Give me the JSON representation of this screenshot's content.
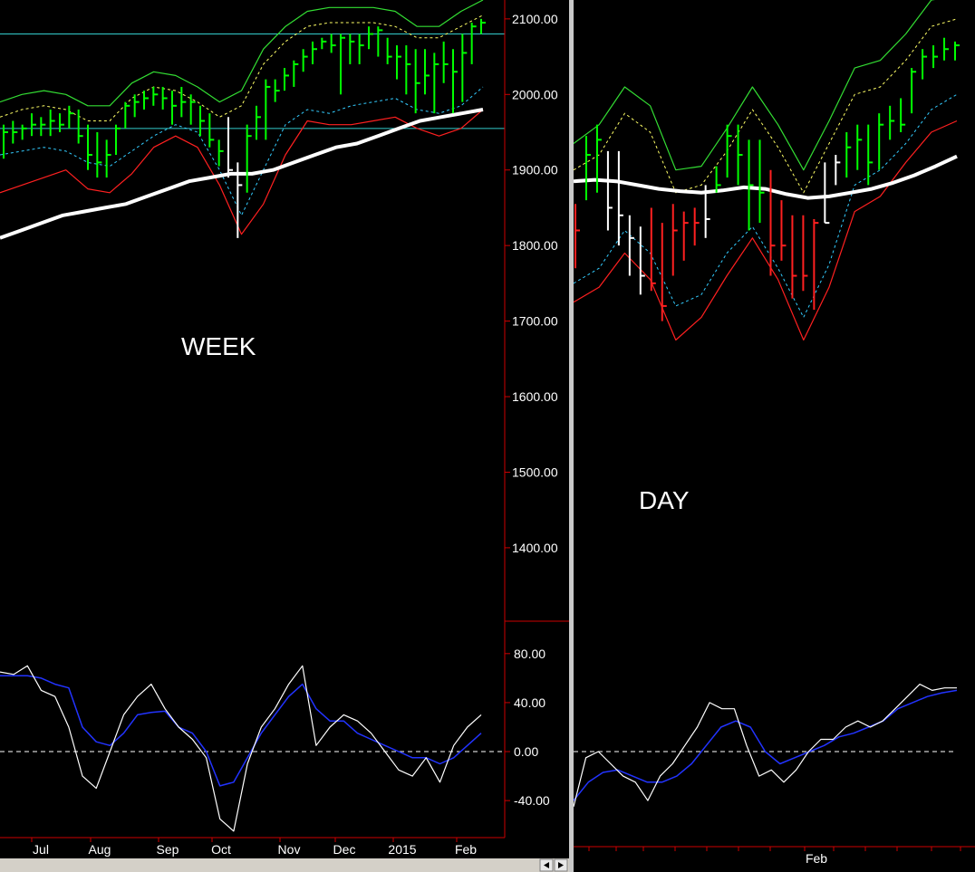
{
  "colors": {
    "background": "#000000",
    "up_bar": "#00ff00",
    "down_bar": "#ff2020",
    "neutral_bar": "#ffffff",
    "band_outer_upper": "#33dd33",
    "band_inner_upper": "#ffff66",
    "band_inner_lower": "#33ccff",
    "band_outer_lower": "#ff2020",
    "moving_average": "#ffffff",
    "support_lines": "#33cccc",
    "oscillator_fast": "#ffffff",
    "oscillator_slow": "#2233ff",
    "axis": "#cc0000",
    "divider": "#c8c8c8"
  },
  "panels": {
    "week_label": "WEEK",
    "day_label": "DAY"
  },
  "chart_data": [
    {
      "type": "ohlc",
      "panel": "week-price",
      "y_axis_ticks": [
        "2100.00",
        "2000.00",
        "1900.00",
        "1800.00",
        "1700.00",
        "1600.00",
        "1500.00",
        "1400.00"
      ],
      "ylim": [
        1310,
        2125
      ],
      "x_labels": [
        "Jul",
        "Aug",
        "Sep",
        "Oct",
        "Nov",
        "Dec",
        "2015",
        "Feb"
      ],
      "horizontal_lines": [
        2080,
        1955
      ],
      "bars": [
        {
          "h": 1960,
          "l": 1915,
          "c": 1950,
          "d": "up"
        },
        {
          "h": 1965,
          "l": 1935,
          "c": 1950,
          "d": "up"
        },
        {
          "h": 1960,
          "l": 1940,
          "c": 1955,
          "d": "up"
        },
        {
          "h": 1975,
          "l": 1945,
          "c": 1960,
          "d": "up"
        },
        {
          "h": 1970,
          "l": 1945,
          "c": 1960,
          "d": "up"
        },
        {
          "h": 1980,
          "l": 1945,
          "c": 1965,
          "d": "up"
        },
        {
          "h": 1975,
          "l": 1950,
          "c": 1960,
          "d": "up"
        },
        {
          "h": 1985,
          "l": 1955,
          "c": 1975,
          "d": "up"
        },
        {
          "h": 1980,
          "l": 1935,
          "c": 1945,
          "d": "up"
        },
        {
          "h": 1960,
          "l": 1900,
          "c": 1920,
          "d": "up"
        },
        {
          "h": 1950,
          "l": 1890,
          "c": 1910,
          "d": "up"
        },
        {
          "h": 1940,
          "l": 1890,
          "c": 1920,
          "d": "up"
        },
        {
          "h": 1960,
          "l": 1920,
          "c": 1955,
          "d": "up"
        },
        {
          "h": 1990,
          "l": 1955,
          "c": 1985,
          "d": "up"
        },
        {
          "h": 2000,
          "l": 1970,
          "c": 1990,
          "d": "up"
        },
        {
          "h": 2005,
          "l": 1980,
          "c": 1995,
          "d": "up"
        },
        {
          "h": 2010,
          "l": 1985,
          "c": 2000,
          "d": "up"
        },
        {
          "h": 2010,
          "l": 1980,
          "c": 1995,
          "d": "up"
        },
        {
          "h": 2005,
          "l": 1960,
          "c": 1985,
          "d": "up"
        },
        {
          "h": 2010,
          "l": 1970,
          "c": 1990,
          "d": "up"
        },
        {
          "h": 2000,
          "l": 1960,
          "c": 1990,
          "d": "up"
        },
        {
          "h": 1985,
          "l": 1945,
          "c": 1965,
          "d": "up"
        },
        {
          "h": 1975,
          "l": 1930,
          "c": 1940,
          "d": "up"
        },
        {
          "h": 1940,
          "l": 1905,
          "c": 1925,
          "d": "up"
        },
        {
          "h": 1970,
          "l": 1890,
          "c": 1900,
          "d": "neutral"
        },
        {
          "h": 1910,
          "l": 1810,
          "c": 1880,
          "d": "neutral"
        },
        {
          "h": 1960,
          "l": 1870,
          "c": 1945,
          "d": "up"
        },
        {
          "h": 1985,
          "l": 1940,
          "c": 1970,
          "d": "up"
        },
        {
          "h": 2020,
          "l": 1940,
          "c": 2010,
          "d": "up"
        },
        {
          "h": 2020,
          "l": 1990,
          "c": 2005,
          "d": "up"
        },
        {
          "h": 2035,
          "l": 2005,
          "c": 2025,
          "d": "up"
        },
        {
          "h": 2045,
          "l": 2010,
          "c": 2040,
          "d": "up"
        },
        {
          "h": 2060,
          "l": 2030,
          "c": 2050,
          "d": "up"
        },
        {
          "h": 2070,
          "l": 2040,
          "c": 2060,
          "d": "up"
        },
        {
          "h": 2075,
          "l": 2060,
          "c": 2070,
          "d": "up"
        },
        {
          "h": 2080,
          "l": 2055,
          "c": 2065,
          "d": "up"
        },
        {
          "h": 2080,
          "l": 2000,
          "c": 2075,
          "d": "up"
        },
        {
          "h": 2080,
          "l": 2040,
          "c": 2070,
          "d": "up"
        },
        {
          "h": 2080,
          "l": 2040,
          "c": 2065,
          "d": "up"
        },
        {
          "h": 2090,
          "l": 2060,
          "c": 2080,
          "d": "up"
        },
        {
          "h": 2090,
          "l": 2050,
          "c": 2085,
          "d": "up"
        },
        {
          "h": 2075,
          "l": 2040,
          "c": 2050,
          "d": "up"
        },
        {
          "h": 2065,
          "l": 2020,
          "c": 2050,
          "d": "up"
        },
        {
          "h": 2065,
          "l": 2000,
          "c": 2040,
          "d": "up"
        },
        {
          "h": 2060,
          "l": 1975,
          "c": 2015,
          "d": "up"
        },
        {
          "h": 2060,
          "l": 2000,
          "c": 2025,
          "d": "up"
        },
        {
          "h": 2055,
          "l": 1975,
          "c": 2040,
          "d": "up"
        },
        {
          "h": 2070,
          "l": 2015,
          "c": 2040,
          "d": "up"
        },
        {
          "h": 2060,
          "l": 1975,
          "c": 2030,
          "d": "up"
        },
        {
          "h": 2080,
          "l": 1990,
          "c": 2055,
          "d": "up"
        },
        {
          "h": 2095,
          "l": 2040,
          "c": 2090,
          "d": "up"
        },
        {
          "h": 2100,
          "l": 2080,
          "c": 2095,
          "d": "up"
        }
      ],
      "moving_average": [
        1810,
        1820,
        1830,
        1840,
        1845,
        1850,
        1855,
        1865,
        1875,
        1885,
        1890,
        1895,
        1895,
        1900,
        1910,
        1920,
        1930,
        1935,
        1945,
        1955,
        1965,
        1970,
        1975,
        1980
      ],
      "band_outer_upper": [
        1990,
        2000,
        2005,
        2000,
        1985,
        1985,
        2015,
        2030,
        2025,
        2010,
        1990,
        2005,
        2060,
        2090,
        2110,
        2115,
        2115,
        2115,
        2110,
        2090,
        2090,
        2110,
        2125
      ],
      "band_inner_upper": [
        1970,
        1980,
        1985,
        1980,
        1965,
        1965,
        1995,
        2010,
        2005,
        1990,
        1970,
        1985,
        2040,
        2070,
        2090,
        2095,
        2095,
        2095,
        2090,
        2075,
        2075,
        2090,
        2105
      ],
      "band_inner_lower": [
        1920,
        1925,
        1930,
        1925,
        1910,
        1905,
        1925,
        1945,
        1960,
        1950,
        1900,
        1840,
        1900,
        1960,
        1980,
        1975,
        1985,
        1990,
        1995,
        1980,
        1975,
        1985,
        2010
      ],
      "band_outer_lower": [
        1870,
        1880,
        1890,
        1900,
        1875,
        1870,
        1895,
        1930,
        1945,
        1930,
        1880,
        1815,
        1855,
        1920,
        1965,
        1960,
        1960,
        1965,
        1970,
        1955,
        1945,
        1955,
        1980
      ]
    },
    {
      "type": "line",
      "panel": "week-oscillator",
      "y_axis_ticks": [
        "80.00",
        "40.00",
        "0.00",
        "-40.00"
      ],
      "ylim": [
        -68,
        105
      ],
      "zero_line": 0,
      "series": [
        {
          "role": "fast",
          "values": [
            65,
            63,
            70,
            50,
            45,
            20,
            -20,
            -30,
            0,
            30,
            45,
            55,
            35,
            20,
            10,
            -5,
            -55,
            -65,
            -10,
            20,
            35,
            55,
            70,
            5,
            20,
            30,
            25,
            15,
            0,
            -15,
            -20,
            -5,
            -25,
            5,
            20,
            30
          ]
        },
        {
          "role": "slow",
          "values": [
            62,
            62,
            62,
            60,
            55,
            52,
            20,
            8,
            5,
            15,
            30,
            32,
            33,
            20,
            15,
            0,
            -28,
            -25,
            -5,
            15,
            30,
            45,
            55,
            35,
            25,
            25,
            15,
            10,
            5,
            0,
            -5,
            -5,
            -10,
            -5,
            5,
            15
          ]
        }
      ]
    },
    {
      "type": "ohlc",
      "panel": "day-price",
      "ylim": [
        1310,
        2125
      ],
      "x_labels": [
        "Feb"
      ],
      "bars": [
        {
          "h": 1855,
          "l": 1770,
          "c": 1820,
          "d": "down"
        },
        {
          "h": 1945,
          "l": 1860,
          "c": 1920,
          "d": "up"
        },
        {
          "h": 1960,
          "l": 1870,
          "c": 1940,
          "d": "up"
        },
        {
          "h": 1925,
          "l": 1820,
          "c": 1850,
          "d": "neutral"
        },
        {
          "h": 1925,
          "l": 1800,
          "c": 1840,
          "d": "neutral"
        },
        {
          "h": 1840,
          "l": 1760,
          "c": 1810,
          "d": "neutral"
        },
        {
          "h": 1825,
          "l": 1735,
          "c": 1760,
          "d": "neutral"
        },
        {
          "h": 1850,
          "l": 1740,
          "c": 1750,
          "d": "down"
        },
        {
          "h": 1830,
          "l": 1700,
          "c": 1720,
          "d": "down"
        },
        {
          "h": 1855,
          "l": 1760,
          "c": 1820,
          "d": "down"
        },
        {
          "h": 1845,
          "l": 1780,
          "c": 1830,
          "d": "down"
        },
        {
          "h": 1850,
          "l": 1800,
          "c": 1830,
          "d": "down"
        },
        {
          "h": 1880,
          "l": 1810,
          "c": 1835,
          "d": "neutral"
        },
        {
          "h": 1905,
          "l": 1870,
          "c": 1880,
          "d": "up"
        },
        {
          "h": 1960,
          "l": 1890,
          "c": 1945,
          "d": "up"
        },
        {
          "h": 1960,
          "l": 1880,
          "c": 1920,
          "d": "up"
        },
        {
          "h": 1940,
          "l": 1820,
          "c": 1880,
          "d": "up"
        },
        {
          "h": 1940,
          "l": 1830,
          "c": 1870,
          "d": "up"
        },
        {
          "h": 1900,
          "l": 1760,
          "c": 1800,
          "d": "down"
        },
        {
          "h": 1860,
          "l": 1780,
          "c": 1800,
          "d": "down"
        },
        {
          "h": 1840,
          "l": 1730,
          "c": 1760,
          "d": "down"
        },
        {
          "h": 1840,
          "l": 1740,
          "c": 1760,
          "d": "down"
        },
        {
          "h": 1835,
          "l": 1715,
          "c": 1830,
          "d": "down"
        },
        {
          "h": 1910,
          "l": 1830,
          "c": 1830,
          "d": "neutral"
        },
        {
          "h": 1920,
          "l": 1880,
          "c": 1910,
          "d": "neutral"
        },
        {
          "h": 1950,
          "l": 1890,
          "c": 1930,
          "d": "up"
        },
        {
          "h": 1960,
          "l": 1900,
          "c": 1940,
          "d": "up"
        },
        {
          "h": 1960,
          "l": 1880,
          "c": 1910,
          "d": "up"
        },
        {
          "h": 1975,
          "l": 1900,
          "c": 1960,
          "d": "up"
        },
        {
          "h": 1985,
          "l": 1940,
          "c": 1965,
          "d": "up"
        },
        {
          "h": 1995,
          "l": 1950,
          "c": 1960,
          "d": "up"
        },
        {
          "h": 2035,
          "l": 1975,
          "c": 2030,
          "d": "up"
        },
        {
          "h": 2060,
          "l": 2020,
          "c": 2050,
          "d": "up"
        },
        {
          "h": 2065,
          "l": 2035,
          "c": 2050,
          "d": "up"
        },
        {
          "h": 2075,
          "l": 2045,
          "c": 2060,
          "d": "up"
        },
        {
          "h": 2070,
          "l": 2045,
          "c": 2065,
          "d": "up"
        }
      ],
      "moving_average": [
        1885,
        1887,
        1885,
        1880,
        1875,
        1872,
        1870,
        1873,
        1877,
        1875,
        1868,
        1863,
        1865,
        1870,
        1875,
        1883,
        1893,
        1905,
        1918
      ],
      "band_outer_upper": [
        1935,
        1960,
        2010,
        1985,
        1900,
        1905,
        1955,
        2010,
        1960,
        1900,
        1965,
        2035,
        2045,
        2080,
        2125,
        2130
      ],
      "band_inner_upper": [
        1900,
        1920,
        1975,
        1950,
        1870,
        1880,
        1925,
        1980,
        1930,
        1870,
        1935,
        2000,
        2010,
        2045,
        2090,
        2100
      ],
      "band_inner_lower": [
        1750,
        1770,
        1820,
        1790,
        1720,
        1735,
        1790,
        1825,
        1770,
        1705,
        1775,
        1880,
        1900,
        1935,
        1980,
        2000
      ],
      "band_outer_lower": [
        1725,
        1745,
        1790,
        1755,
        1675,
        1705,
        1760,
        1810,
        1755,
        1675,
        1745,
        1845,
        1865,
        1910,
        1950,
        1965
      ]
    },
    {
      "type": "line",
      "panel": "day-oscillator",
      "ylim": [
        -68,
        105
      ],
      "zero_line": 0,
      "series": [
        {
          "role": "fast",
          "values": [
            -45,
            -5,
            0,
            -10,
            -20,
            -25,
            -40,
            -20,
            -10,
            5,
            20,
            40,
            35,
            35,
            5,
            -20,
            -15,
            -25,
            -15,
            0,
            10,
            10,
            20,
            25,
            20,
            25,
            35,
            45,
            55,
            50,
            52,
            52
          ]
        },
        {
          "role": "slow",
          "values": [
            -40,
            -25,
            -17,
            -15,
            -20,
            -25,
            -25,
            -20,
            -10,
            5,
            20,
            25,
            20,
            0,
            -10,
            -5,
            0,
            5,
            12,
            15,
            20,
            25,
            35,
            40,
            45,
            48,
            50
          ]
        }
      ]
    }
  ]
}
